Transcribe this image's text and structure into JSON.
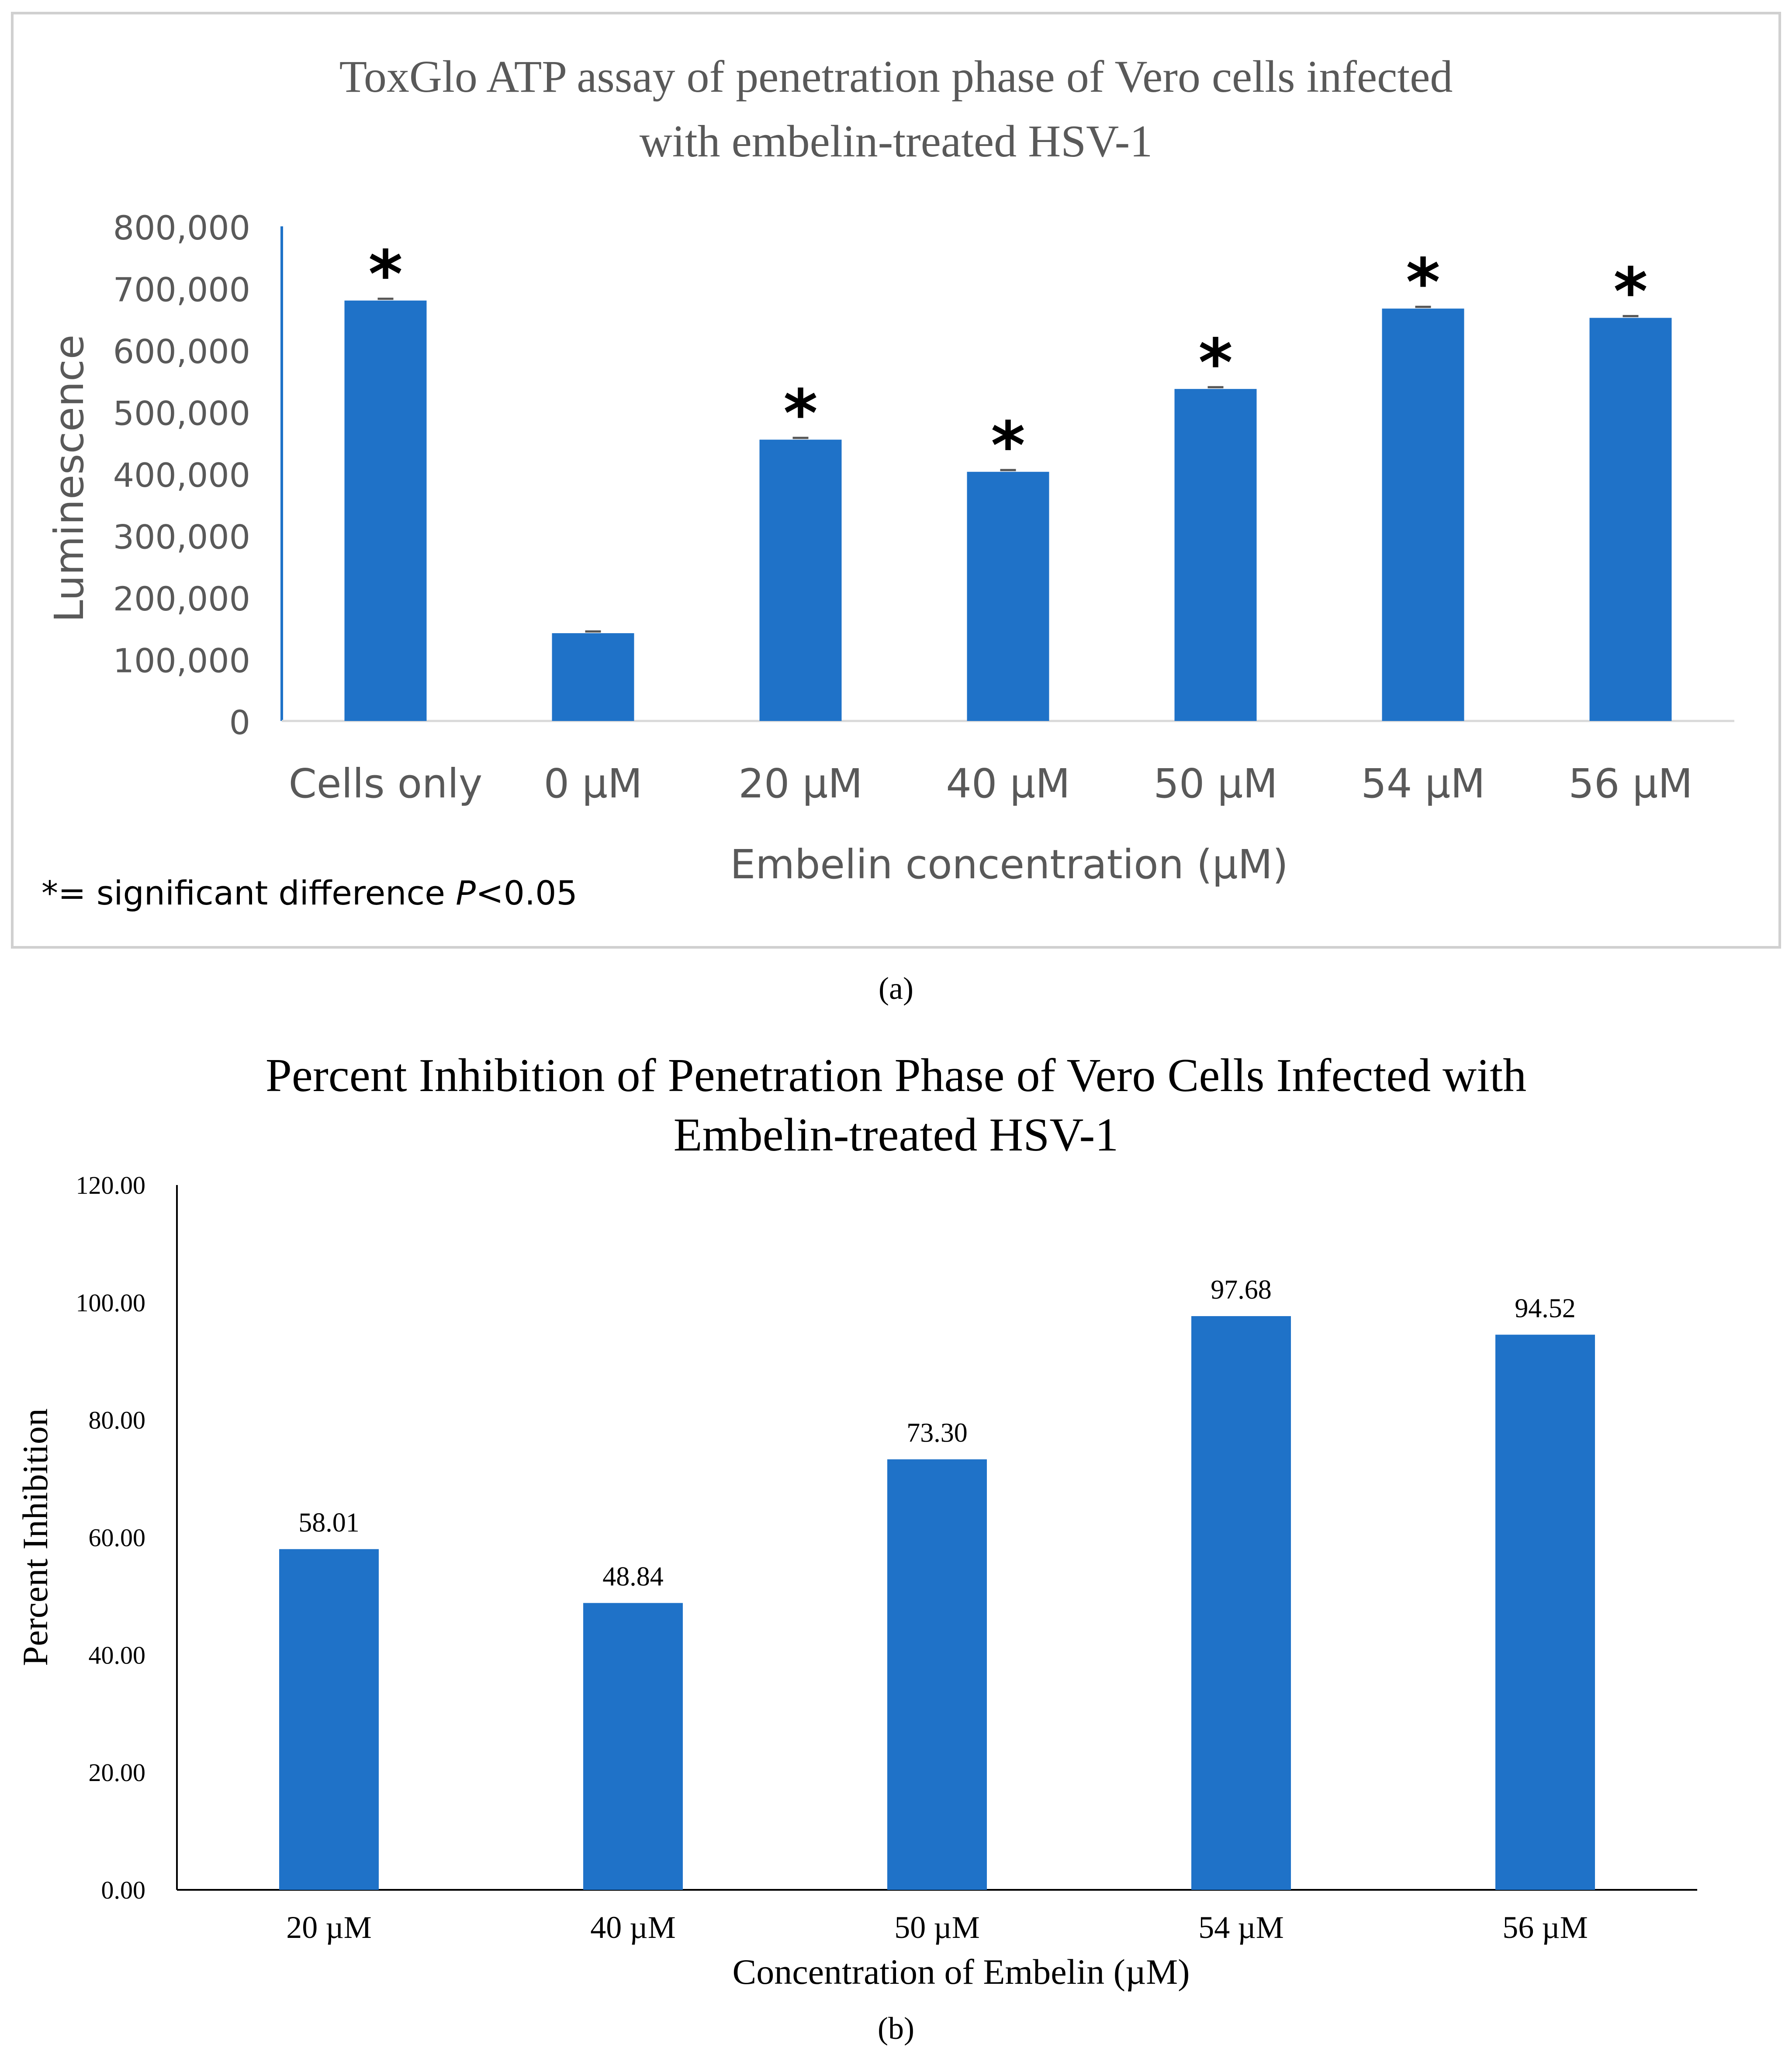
{
  "panel_labels": {
    "a": "(a)",
    "b": "(b)"
  },
  "chart_data": [
    {
      "type": "bar",
      "title": "ToxGlo ATP assay of penetration phase of Vero cells infected with embelin-treated HSV-1",
      "title_lines": [
        "ToxGlo ATP assay of penetration phase of Vero cells infected",
        "with embelin-treated HSV-1"
      ],
      "xlabel": "Embelin concentration (µM)",
      "ylabel": "Luminescence",
      "categories": [
        "Cells only",
        "0  µM",
        "20  µM",
        "40  µM",
        "50  µM",
        "54  µM",
        "56  µM"
      ],
      "values": [
        680000,
        142000,
        455000,
        403000,
        537000,
        667000,
        652000
      ],
      "significant": [
        true,
        false,
        true,
        true,
        true,
        true,
        true
      ],
      "marker": "*",
      "ylim": [
        0,
        800000
      ],
      "yticks": [
        0,
        100000,
        200000,
        300000,
        400000,
        500000,
        600000,
        700000,
        800000
      ],
      "ytick_labels": [
        "0",
        "100,000",
        "200,000",
        "300,000",
        "400,000",
        "500,000",
        "600,000",
        "700,000",
        "800,000"
      ],
      "note_prefix": "*= significant difference ",
      "note_italic": "P",
      "note_suffix": "<0.05",
      "color": "#1F72C8",
      "grid": false,
      "legend": "none"
    },
    {
      "type": "bar",
      "title": "Percent Inhibition of  Penetration Phase of Vero Cells Infected with Embelin-treated HSV-1",
      "title_lines": [
        "Percent Inhibition of  Penetration Phase of Vero Cells Infected with",
        "Embelin-treated HSV-1"
      ],
      "xlabel": "Concentration of Embelin (µM)",
      "ylabel": "Percent Inhibition",
      "categories": [
        "20 µM",
        "40 µM",
        "50 µM",
        "54 µM",
        "56 µM"
      ],
      "values": [
        58.01,
        48.84,
        73.3,
        97.68,
        94.52
      ],
      "value_labels": [
        "58.01",
        "48.84",
        "73.30",
        "97.68",
        "94.52"
      ],
      "ylim": [
        0,
        120
      ],
      "yticks": [
        0,
        20,
        40,
        60,
        80,
        100,
        120
      ],
      "ytick_labels": [
        "0.00",
        "20.00",
        "40.00",
        "60.00",
        "80.00",
        "100.00",
        "120.00"
      ],
      "color": "#1F72C8",
      "grid": false,
      "legend": "none"
    }
  ]
}
